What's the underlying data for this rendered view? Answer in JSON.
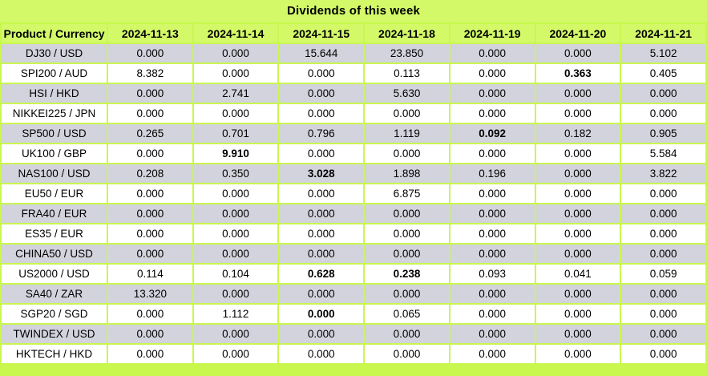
{
  "title": "Dividends of this week",
  "colors": {
    "header_green": "#d3f969",
    "grid_green": "#c9f74e",
    "row_gray": "#d2d3dc",
    "row_white": "#ffffff",
    "text": "#000000"
  },
  "table": {
    "product_header": "Product / Currency",
    "date_headers": [
      "2024-11-13",
      "2024-11-14",
      "2024-11-15",
      "2024-11-18",
      "2024-11-19",
      "2024-11-20",
      "2024-11-21"
    ],
    "rows": [
      {
        "product": "DJ30 / USD",
        "values": [
          "0.000",
          "0.000",
          "15.644",
          "23.850",
          "0.000",
          "0.000",
          "5.102"
        ],
        "bold": []
      },
      {
        "product": "SPI200 / AUD",
        "values": [
          "8.382",
          "0.000",
          "0.000",
          "0.113",
          "0.000",
          "0.363",
          "0.405"
        ],
        "bold": [
          5
        ]
      },
      {
        "product": "HSI / HKD",
        "values": [
          "0.000",
          "2.741",
          "0.000",
          "5.630",
          "0.000",
          "0.000",
          "0.000"
        ],
        "bold": []
      },
      {
        "product": "NIKKEI225 / JPN",
        "values": [
          "0.000",
          "0.000",
          "0.000",
          "0.000",
          "0.000",
          "0.000",
          "0.000"
        ],
        "bold": []
      },
      {
        "product": "SP500 / USD",
        "values": [
          "0.265",
          "0.701",
          "0.796",
          "1.119",
          "0.092",
          "0.182",
          "0.905"
        ],
        "bold": [
          4
        ]
      },
      {
        "product": "UK100 / GBP",
        "values": [
          "0.000",
          "9.910",
          "0.000",
          "0.000",
          "0.000",
          "0.000",
          "5.584"
        ],
        "bold": [
          1
        ]
      },
      {
        "product": "NAS100 / USD",
        "values": [
          "0.208",
          "0.350",
          "3.028",
          "1.898",
          "0.196",
          "0.000",
          "3.822"
        ],
        "bold": [
          2
        ]
      },
      {
        "product": "EU50 / EUR",
        "values": [
          "0.000",
          "0.000",
          "0.000",
          "6.875",
          "0.000",
          "0.000",
          "0.000"
        ],
        "bold": []
      },
      {
        "product": "FRA40 / EUR",
        "values": [
          "0.000",
          "0.000",
          "0.000",
          "0.000",
          "0.000",
          "0.000",
          "0.000"
        ],
        "bold": []
      },
      {
        "product": "ES35 / EUR",
        "values": [
          "0.000",
          "0.000",
          "0.000",
          "0.000",
          "0.000",
          "0.000",
          "0.000"
        ],
        "bold": []
      },
      {
        "product": "CHINA50 / USD",
        "values": [
          "0.000",
          "0.000",
          "0.000",
          "0.000",
          "0.000",
          "0.000",
          "0.000"
        ],
        "bold": []
      },
      {
        "product": "US2000 / USD",
        "values": [
          "0.114",
          "0.104",
          "0.628",
          "0.238",
          "0.093",
          "0.041",
          "0.059"
        ],
        "bold": [
          2,
          3
        ]
      },
      {
        "product": "SA40 / ZAR",
        "values": [
          "13.320",
          "0.000",
          "0.000",
          "0.000",
          "0.000",
          "0.000",
          "0.000"
        ],
        "bold": []
      },
      {
        "product": "SGP20 / SGD",
        "values": [
          "0.000",
          "1.112",
          "0.000",
          "0.065",
          "0.000",
          "0.000",
          "0.000"
        ],
        "bold": [
          2
        ]
      },
      {
        "product": "TWINDEX / USD",
        "values": [
          "0.000",
          "0.000",
          "0.000",
          "0.000",
          "0.000",
          "0.000",
          "0.000"
        ],
        "bold": []
      },
      {
        "product": "HKTECH / HKD",
        "values": [
          "0.000",
          "0.000",
          "0.000",
          "0.000",
          "0.000",
          "0.000",
          "0.000"
        ],
        "bold": []
      }
    ]
  }
}
